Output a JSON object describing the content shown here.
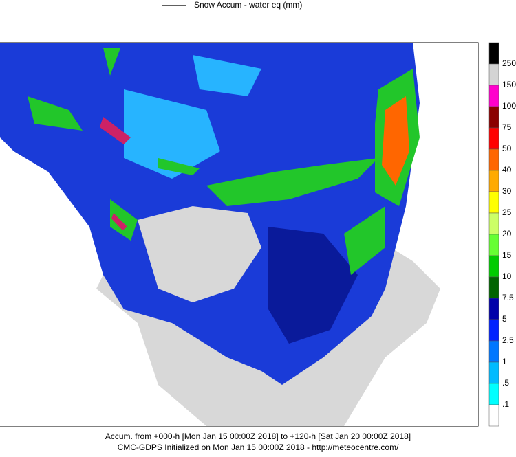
{
  "header": {
    "legend_text": "Snow Accum - water eq (mm)"
  },
  "colorbar": {
    "colors": [
      "#000000",
      "#d4d4d4",
      "#ff00cc",
      "#8b0000",
      "#ff0000",
      "#ff6600",
      "#ffaa00",
      "#ffff00",
      "#ccff66",
      "#66ff33",
      "#00cc00",
      "#006400",
      "#0000aa",
      "#0022ff",
      "#0077ff",
      "#00bbff",
      "#00ffff",
      "#ffffff"
    ],
    "levels": [
      250,
      150,
      100,
      75,
      50,
      40,
      30,
      25,
      20,
      15,
      10,
      7.5,
      5,
      2.5,
      1,
      {
        "value": 0.5,
        "label": ".5"
      },
      {
        "value": 0.1,
        "label": ".1"
      }
    ]
  },
  "footer": {
    "line1": "Accum. from +000-h [Mon Jan 15 00:00Z 2018] to +120-h [Sat Jan 20 00:00Z 2018]",
    "line2": "CMC-GDPS Initialized on Mon Jan 15 00:00Z 2018 - http://meteocentre.com/"
  }
}
